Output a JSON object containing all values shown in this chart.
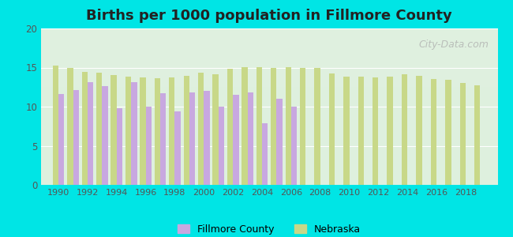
{
  "title": "Births per 1000 population in Fillmore County",
  "background_color": "#00e5e5",
  "plot_bg_top": "#e8f4e8",
  "plot_bg_bottom": "#f0faf0",
  "years": [
    1990,
    1991,
    1992,
    1993,
    1994,
    1995,
    1996,
    1997,
    1998,
    1999,
    2000,
    2001,
    2002,
    2003,
    2004,
    2005,
    2006,
    2007,
    2008,
    2009,
    2010,
    2011,
    2012,
    2013,
    2014,
    2015,
    2016,
    2017,
    2018,
    2019
  ],
  "fillmore": [
    11.6,
    12.1,
    13.1,
    12.6,
    9.8,
    13.1,
    10.0,
    11.7,
    9.4,
    11.8,
    12.0,
    10.0,
    11.5,
    11.8,
    7.9,
    11.0,
    10.0,
    null,
    null,
    null,
    null,
    null,
    null,
    null,
    null,
    null,
    null,
    null,
    null,
    null
  ],
  "nebraska": [
    15.3,
    15.0,
    14.4,
    14.3,
    14.0,
    13.8,
    13.7,
    13.6,
    13.7,
    13.9,
    14.3,
    14.1,
    14.8,
    15.1,
    15.1,
    14.9,
    15.1,
    15.0,
    15.0,
    14.2,
    13.8,
    13.8,
    13.7,
    13.8,
    14.1,
    13.9,
    13.5,
    13.4,
    13.0,
    12.7
  ],
  "fillmore_color": "#c8a8e0",
  "nebraska_color": "#c8d888",
  "ylim": [
    0,
    20
  ],
  "yticks": [
    0,
    5,
    10,
    15,
    20
  ],
  "xticks": [
    1990,
    1992,
    1994,
    1996,
    1998,
    2000,
    2002,
    2004,
    2006,
    2008,
    2010,
    2012,
    2014,
    2016,
    2018
  ],
  "bar_width": 0.4,
  "legend_fillmore": "Fillmore County",
  "legend_nebraska": "Nebraska"
}
